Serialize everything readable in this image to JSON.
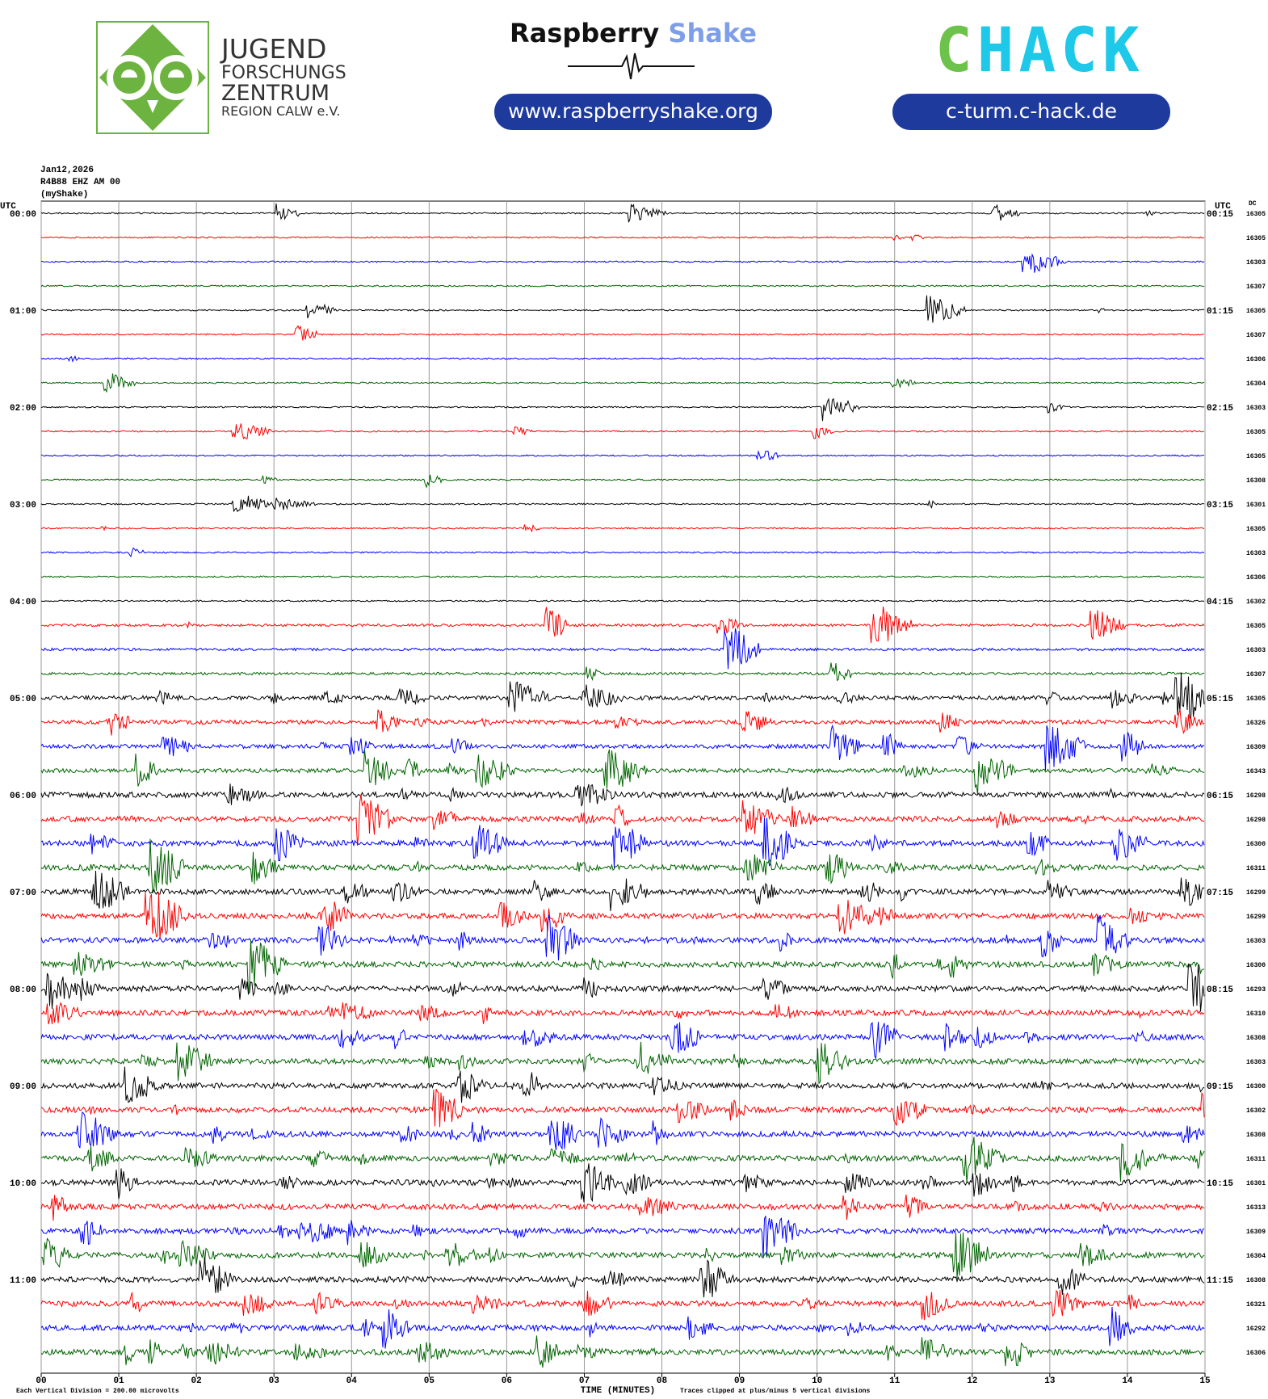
{
  "header": {
    "logo_left": [
      "JUGEND",
      "FORSCHUNGS",
      "ZENTRUM",
      "REGION CALW e.V."
    ],
    "brand_a": "Raspberry",
    "brand_b": "Shake",
    "url1": "www.raspberryshake.org",
    "chack_a": "C",
    "chack_b": "HACK",
    "url2": "c-turm.c-hack.de"
  },
  "chart_data": {
    "type": "helicorder",
    "date": "Jan12,2026",
    "station": "R4B88 EHZ AM 00",
    "source": "(myShake)",
    "left_axis_label": "UTC",
    "right_axis_label": "UTC",
    "dc_label": "DC",
    "left_times": [
      "00:00",
      "01:00",
      "02:00",
      "03:00",
      "04:00",
      "05:00",
      "06:00",
      "07:00",
      "08:00",
      "09:00",
      "10:00",
      "11:00"
    ],
    "right_times": [
      "00:15",
      "01:15",
      "02:15",
      "03:15",
      "04:15",
      "05:15",
      "06:15",
      "07:15",
      "08:15",
      "09:15",
      "10:15",
      "11:15"
    ],
    "dc_values": [
      16305,
      16305,
      16303,
      16307,
      16305,
      16307,
      16306,
      16304,
      16303,
      16305,
      16305,
      16308,
      16301,
      16305,
      16303,
      16306,
      16302,
      16305,
      16303,
      16307,
      16305,
      16326,
      16309,
      16343,
      16298,
      16298,
      16300,
      16311,
      16299,
      16299,
      16303,
      16300,
      16293,
      16310,
      16308,
      16303,
      16300,
      16302,
      16308,
      16311,
      16301,
      16313,
      16309,
      16304,
      16308,
      16321,
      16292,
      16306
    ],
    "xlim": [
      0,
      15
    ],
    "xticks": [
      {
        "value": 0,
        "label": "00"
      },
      {
        "value": 1,
        "label": "01"
      },
      {
        "value": 2,
        "label": "02"
      },
      {
        "value": 3,
        "label": "03"
      },
      {
        "value": 4,
        "label": "04"
      },
      {
        "value": 5,
        "label": "05"
      },
      {
        "value": 6,
        "label": "06"
      },
      {
        "value": 7,
        "label": "07"
      },
      {
        "value": 8,
        "label": "08"
      },
      {
        "value": 9,
        "label": "09"
      },
      {
        "value": 10,
        "label": "10"
      },
      {
        "value": 11,
        "label": "11"
      },
      {
        "value": 12,
        "label": "12"
      },
      {
        "value": 13,
        "label": "13"
      },
      {
        "value": 14,
        "label": "14"
      },
      {
        "value": 15,
        "label": "15"
      }
    ],
    "xlabel": "TIME (MINUTES)",
    "footnote_left": "Each Vertical Division =  200.00 microvolts",
    "footnote_right": "Traces clipped at plus/minus 5 vertical divisions",
    "trace_colors": [
      "#000000",
      "#ff0000",
      "#0000ff",
      "#006400"
    ],
    "grid": true
  }
}
